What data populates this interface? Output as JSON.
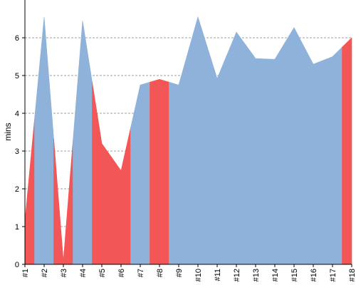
{
  "chart_data": {
    "type": "area",
    "title": "",
    "xlabel": "",
    "ylabel": "mins",
    "ylim": [
      0,
      7
    ],
    "yticks": [
      0,
      1,
      2,
      3,
      4,
      5,
      6
    ],
    "grid": true,
    "legend": "none",
    "categories": [
      "#1",
      "#2",
      "#3",
      "#4",
      "#5",
      "#6",
      "#7",
      "#8",
      "#9",
      "#10",
      "#11",
      "#12",
      "#13",
      "#14",
      "#15",
      "#16",
      "#17",
      "#18"
    ],
    "values": [
      1.15,
      6.55,
      0.1,
      6.45,
      3.2,
      2.48,
      4.75,
      4.9,
      4.75,
      6.55,
      4.92,
      6.15,
      5.45,
      5.43,
      6.27,
      5.3,
      5.5,
      6.0
    ],
    "colors": {
      "default": "#8eb2d9",
      "highlight": "#f25656",
      "grid": "#808080",
      "axis": "#000000"
    },
    "band_colors": [
      "highlight",
      "default",
      "highlight",
      "default",
      "highlight",
      "highlight",
      "default",
      "highlight",
      "default",
      "default",
      "default",
      "default",
      "default",
      "default",
      "default",
      "default",
      "default",
      "highlight"
    ]
  }
}
